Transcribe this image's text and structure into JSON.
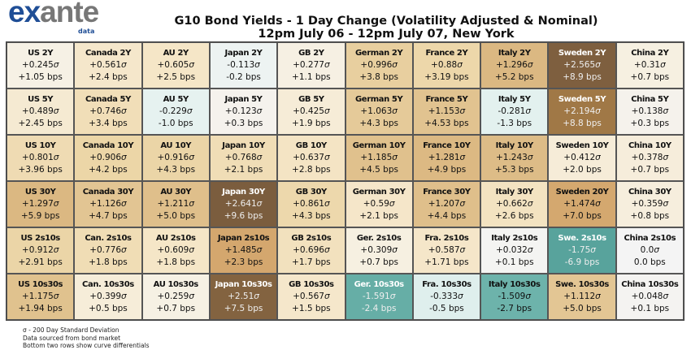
{
  "logo": {
    "main_1": "ex",
    "main_2": "ante",
    "sub": "data"
  },
  "title_line1": "G10 Bond Yields - 1 Day Change (Volatility Adjusted & Nominal)",
  "title_line2": "12pm July 06 - 12pm July 07, New York",
  "footnotes": [
    "σ - 200 Day Standard Deviation",
    "Data sourced from bond market",
    "Bottom two rows show curve differentials"
  ],
  "colors": {
    "negative_strong": "#58a39c",
    "neutral": "#f4f4f4",
    "positive_strong": "#7b5d3e"
  },
  "chart_data": {
    "type": "heatmap",
    "colormap": "brown-teal diverging (positive brown, negative teal)",
    "rows": [
      [
        {
          "label": "US 2Y",
          "sigma": "+0.245",
          "bps": "+1.05"
        },
        {
          "label": "Canada 2Y",
          "sigma": "+0.561",
          "bps": "+2.4"
        },
        {
          "label": "AU 2Y",
          "sigma": "+0.605",
          "bps": "+2.5"
        },
        {
          "label": "Japan 2Y",
          "sigma": "-0.113",
          "bps": "-0.2"
        },
        {
          "label": "GB 2Y",
          "sigma": "+0.277",
          "bps": "+1.1"
        },
        {
          "label": "German 2Y",
          "sigma": "+0.996",
          "bps": "+3.8"
        },
        {
          "label": "France 2Y",
          "sigma": "+0.88",
          "bps": "+3.19"
        },
        {
          "label": "Italy 2Y",
          "sigma": "+1.296",
          "bps": "+5.2"
        },
        {
          "label": "Sweden 2Y",
          "sigma": "+2.565",
          "bps": "+8.9"
        },
        {
          "label": "China 2Y",
          "sigma": "+0.31",
          "bps": "+0.7"
        }
      ],
      [
        {
          "label": "US 5Y",
          "sigma": "+0.489",
          "bps": "+2.45"
        },
        {
          "label": "Canada 5Y",
          "sigma": "+0.746",
          "bps": "+3.4"
        },
        {
          "label": "AU 5Y",
          "sigma": "-0.229",
          "bps": "-1.0"
        },
        {
          "label": "Japan 5Y",
          "sigma": "+0.123",
          "bps": "+0.3"
        },
        {
          "label": "GB 5Y",
          "sigma": "+0.425",
          "bps": "+1.9"
        },
        {
          "label": "German 5Y",
          "sigma": "+1.063",
          "bps": "+4.3"
        },
        {
          "label": "France 5Y",
          "sigma": "+1.153",
          "bps": "+4.53"
        },
        {
          "label": "Italy 5Y",
          "sigma": "-0.281",
          "bps": "-1.3"
        },
        {
          "label": "Sweden 5Y",
          "sigma": "+2.194",
          "bps": "+8.8"
        },
        {
          "label": "China 5Y",
          "sigma": "+0.138",
          "bps": "+0.3"
        }
      ],
      [
        {
          "label": "US 10Y",
          "sigma": "+0.801",
          "bps": "+3.96"
        },
        {
          "label": "Canada 10Y",
          "sigma": "+0.906",
          "bps": "+4.2"
        },
        {
          "label": "AU 10Y",
          "sigma": "+0.916",
          "bps": "+4.3"
        },
        {
          "label": "Japan 10Y",
          "sigma": "+0.768",
          "bps": "+2.1"
        },
        {
          "label": "GB 10Y",
          "sigma": "+0.637",
          "bps": "+2.8"
        },
        {
          "label": "German 10Y",
          "sigma": "+1.185",
          "bps": "+4.5"
        },
        {
          "label": "France 10Y",
          "sigma": "+1.281",
          "bps": "+4.9"
        },
        {
          "label": "Italy 10Y",
          "sigma": "+1.243",
          "bps": "+5.3"
        },
        {
          "label": "Sweden 10Y",
          "sigma": "+0.412",
          "bps": "+2.0"
        },
        {
          "label": "China 10Y",
          "sigma": "+0.378",
          "bps": "+0.7"
        }
      ],
      [
        {
          "label": "US 30Y",
          "sigma": "+1.297",
          "bps": "+5.9"
        },
        {
          "label": "Canada 30Y",
          "sigma": "+1.126",
          "bps": "+4.7"
        },
        {
          "label": "AU 30Y",
          "sigma": "+1.211",
          "bps": "+5.0"
        },
        {
          "label": "Japan 30Y",
          "sigma": "+2.641",
          "bps": "+9.6"
        },
        {
          "label": "GB 30Y",
          "sigma": "+0.861",
          "bps": "+4.3"
        },
        {
          "label": "German 30Y",
          "sigma": "+0.59",
          "bps": "+2.1"
        },
        {
          "label": "France 30Y",
          "sigma": "+1.207",
          "bps": "+4.4"
        },
        {
          "label": "Italy 30Y",
          "sigma": "+0.662",
          "bps": "+2.6"
        },
        {
          "label": "Sweden 20Y",
          "sigma": "+1.474",
          "bps": "+7.0"
        },
        {
          "label": "China 30Y",
          "sigma": "+0.359",
          "bps": "+0.8"
        }
      ],
      [
        {
          "label": "US 2s10s",
          "sigma": "+0.912",
          "bps": "+2.91"
        },
        {
          "label": "Can. 2s10s",
          "sigma": "+0.776",
          "bps": "+1.8"
        },
        {
          "label": "AU 2s10s",
          "sigma": "+0.609",
          "bps": "+1.8"
        },
        {
          "label": "Japan 2s10s",
          "sigma": "+1.485",
          "bps": "+2.3"
        },
        {
          "label": "GB 2s10s",
          "sigma": "+0.696",
          "bps": "+1.7"
        },
        {
          "label": "Ger. 2s10s",
          "sigma": "+0.309",
          "bps": "+0.7"
        },
        {
          "label": "Fra. 2s10s",
          "sigma": "+0.587",
          "bps": "+1.71"
        },
        {
          "label": "Italy 2s10s",
          "sigma": "+0.032",
          "bps": "+0.1"
        },
        {
          "label": "Swe. 2s10s",
          "sigma": "-1.75",
          "bps": "-6.9"
        },
        {
          "label": "China 2s10s",
          "sigma": "0.0",
          "bps": "0.0"
        }
      ],
      [
        {
          "label": "US 10s30s",
          "sigma": "+1.175",
          "bps": "+1.94"
        },
        {
          "label": "Can. 10s30s",
          "sigma": "+0.399",
          "bps": "+0.5"
        },
        {
          "label": "AU 10s30s",
          "sigma": "+0.259",
          "bps": "+0.7"
        },
        {
          "label": "Japan 10s30s",
          "sigma": "+2.51",
          "bps": "+7.5"
        },
        {
          "label": "GB 10s30s",
          "sigma": "+0.567",
          "bps": "+1.5"
        },
        {
          "label": "Ger. 10s30s",
          "sigma": "-1.591",
          "bps": "-2.4"
        },
        {
          "label": "Fra. 10s30s",
          "sigma": "-0.333",
          "bps": "-0.5"
        },
        {
          "label": "Italy 10s30s",
          "sigma": "-1.509",
          "bps": "-2.7"
        },
        {
          "label": "Swe. 10s30s",
          "sigma": "+1.112",
          "bps": "+5.0"
        },
        {
          "label": "China 10s30s",
          "sigma": "+0.048",
          "bps": "+0.1"
        }
      ]
    ],
    "sigma_suffix": "σ",
    "bps_suffix": " bps"
  }
}
